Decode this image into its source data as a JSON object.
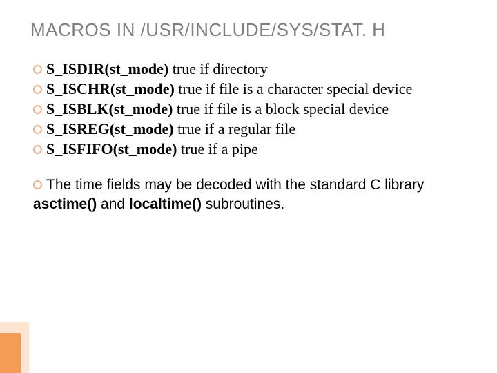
{
  "title": "MACROS IN /USR/INCLUDE/SYS/STAT. H",
  "colors": {
    "title": "#7f7f7f",
    "text": "#000000",
    "bullet_ring": "#eab18a",
    "accent_outer": "#fde5d2",
    "accent_inner": "#f59d56",
    "background": "#ffffff"
  },
  "fonts": {
    "title_family": "Arial",
    "title_size_pt": 20,
    "body_family": "Times New Roman",
    "body_size_pt": 17
  },
  "macros": [
    {
      "name": "S_ISDIR(st_mode)",
      "desc": " true if directory"
    },
    {
      "name": "S_ISCHR(st_mode)",
      "desc": " true if file is a character special device"
    },
    {
      "name": "S_ISBLK(st_mode)",
      "desc": " true if file is a block special device"
    },
    {
      "name": "S_ISREG(st_mode)",
      "desc": " true if a regular file"
    },
    {
      "name": "S_ISFIFO(st_mode)",
      "desc": " true if a pipe"
    }
  ],
  "footer": {
    "lead": "The",
    "part1": " time fields may be decoded with the standard C library ",
    "fn1": "asctime()",
    "mid": " and ",
    "fn2": "localtime()",
    "part2": " subroutines."
  }
}
